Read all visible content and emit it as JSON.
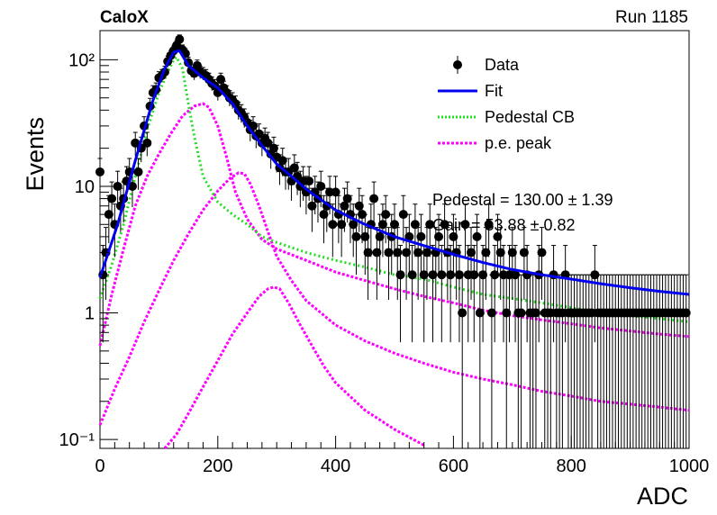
{
  "header": {
    "left_label": "CaloX",
    "right_label": "Run 1185"
  },
  "fit_results": {
    "pedestal": "Pedestal = 130.00 ± 1.39",
    "gain": "Gain = 53.88 ± 0.82"
  },
  "chart_data": {
    "type": "scatter",
    "title": "",
    "xlabel": "ADC",
    "ylabel": "Events",
    "xlim": [
      0,
      1000
    ],
    "ylim": [
      0.085,
      170
    ],
    "log_y": true,
    "grid": false,
    "legend_position": "top-right",
    "x_ticks": [
      0,
      200,
      400,
      600,
      800,
      1000
    ],
    "y_ticks": [
      {
        "value": 0.1,
        "label": "10⁻¹"
      },
      {
        "value": 1,
        "label": "1"
      },
      {
        "value": 10,
        "label": "10"
      },
      {
        "value": 100,
        "label": "10²"
      }
    ],
    "legend": [
      {
        "name": "Data",
        "style": "marker",
        "color": "#000000"
      },
      {
        "name": "Fit",
        "style": "solid",
        "color": "#0000ee"
      },
      {
        "name": "Pedestal CB",
        "style": "dotted",
        "color": "#22dd22"
      },
      {
        "name": "p.e. peak",
        "style": "dashed",
        "color": "#ff00ff"
      }
    ],
    "data_points": [
      [
        0,
        13
      ],
      [
        5,
        2
      ],
      [
        10,
        3
      ],
      [
        15,
        6
      ],
      [
        20,
        8
      ],
      [
        25,
        5
      ],
      [
        30,
        10
      ],
      [
        35,
        7
      ],
      [
        40,
        8
      ],
      [
        45,
        11
      ],
      [
        50,
        13
      ],
      [
        55,
        10
      ],
      [
        60,
        22
      ],
      [
        65,
        13
      ],
      [
        70,
        20
      ],
      [
        75,
        30
      ],
      [
        80,
        22
      ],
      [
        85,
        43
      ],
      [
        90,
        55
      ],
      [
        95,
        58
      ],
      [
        100,
        72
      ],
      [
        105,
        75
      ],
      [
        110,
        80
      ],
      [
        115,
        97
      ],
      [
        120,
        108
      ],
      [
        125,
        118
      ],
      [
        130,
        130
      ],
      [
        135,
        145
      ],
      [
        140,
        120
      ],
      [
        145,
        112
      ],
      [
        150,
        95
      ],
      [
        155,
        82
      ],
      [
        160,
        78
      ],
      [
        165,
        90
      ],
      [
        170,
        80
      ],
      [
        175,
        78
      ],
      [
        180,
        75
      ],
      [
        185,
        70
      ],
      [
        190,
        65
      ],
      [
        195,
        62
      ],
      [
        200,
        55
      ],
      [
        205,
        70
      ],
      [
        210,
        60
      ],
      [
        215,
        55
      ],
      [
        220,
        50
      ],
      [
        225,
        48
      ],
      [
        230,
        45
      ],
      [
        235,
        40
      ],
      [
        240,
        38
      ],
      [
        245,
        35
      ],
      [
        250,
        32
      ],
      [
        255,
        28
      ],
      [
        260,
        30
      ],
      [
        265,
        25
      ],
      [
        270,
        26
      ],
      [
        275,
        22
      ],
      [
        280,
        24
      ],
      [
        285,
        22
      ],
      [
        290,
        18
      ],
      [
        295,
        20
      ],
      [
        300,
        17
      ],
      [
        305,
        14
      ],
      [
        310,
        16
      ],
      [
        315,
        13
      ],
      [
        320,
        13
      ],
      [
        325,
        11
      ],
      [
        330,
        14
      ],
      [
        335,
        12
      ],
      [
        340,
        10
      ],
      [
        345,
        11
      ],
      [
        350,
        9
      ],
      [
        355,
        11
      ],
      [
        360,
        7
      ],
      [
        365,
        9
      ],
      [
        370,
        8
      ],
      [
        375,
        10
      ],
      [
        380,
        6
      ],
      [
        385,
        7
      ],
      [
        390,
        9
      ],
      [
        395,
        5
      ],
      [
        400,
        9
      ],
      [
        405,
        6
      ],
      [
        410,
        5
      ],
      [
        415,
        7
      ],
      [
        420,
        8
      ],
      [
        425,
        6
      ],
      [
        430,
        5
      ],
      [
        435,
        4
      ],
      [
        440,
        7
      ],
      [
        445,
        6
      ],
      [
        450,
        4
      ],
      [
        455,
        3
      ],
      [
        460,
        5
      ],
      [
        465,
        8
      ],
      [
        470,
        3
      ],
      [
        475,
        4
      ],
      [
        480,
        5
      ],
      [
        485,
        6
      ],
      [
        490,
        3
      ],
      [
        495,
        4
      ],
      [
        500,
        5
      ],
      [
        505,
        3
      ],
      [
        510,
        2
      ],
      [
        515,
        6
      ],
      [
        520,
        3
      ],
      [
        525,
        4
      ],
      [
        530,
        2
      ],
      [
        535,
        5
      ],
      [
        540,
        3
      ],
      [
        545,
        4
      ],
      [
        550,
        2
      ],
      [
        555,
        3
      ],
      [
        560,
        5
      ],
      [
        565,
        2
      ],
      [
        570,
        3
      ],
      [
        575,
        4
      ],
      [
        580,
        2
      ],
      [
        585,
        5
      ],
      [
        590,
        3
      ],
      [
        595,
        2
      ],
      [
        600,
        4
      ],
      [
        605,
        3
      ],
      [
        610,
        2
      ],
      [
        615,
        1
      ],
      [
        620,
        5
      ],
      [
        625,
        2
      ],
      [
        630,
        3
      ],
      [
        635,
        2
      ],
      [
        640,
        4
      ],
      [
        645,
        1
      ],
      [
        650,
        2
      ],
      [
        655,
        3
      ],
      [
        660,
        5
      ],
      [
        665,
        1
      ],
      [
        670,
        2
      ],
      [
        675,
        4
      ],
      [
        680,
        3
      ],
      [
        685,
        2
      ],
      [
        690,
        1
      ],
      [
        695,
        2
      ],
      [
        700,
        3
      ],
      [
        705,
        2
      ],
      [
        710,
        1
      ],
      [
        715,
        1
      ],
      [
        720,
        3
      ],
      [
        725,
        2
      ],
      [
        730,
        1
      ],
      [
        735,
        1
      ],
      [
        740,
        1
      ],
      [
        745,
        2
      ],
      [
        750,
        3
      ],
      [
        755,
        1
      ],
      [
        760,
        1
      ],
      [
        765,
        1
      ],
      [
        770,
        2
      ],
      [
        775,
        1
      ],
      [
        780,
        1
      ],
      [
        785,
        1
      ],
      [
        790,
        2
      ],
      [
        795,
        1
      ],
      [
        800,
        1
      ],
      [
        805,
        1
      ],
      [
        810,
        1
      ],
      [
        815,
        1
      ],
      [
        820,
        1
      ],
      [
        825,
        1
      ],
      [
        830,
        1
      ],
      [
        835,
        1
      ],
      [
        840,
        2
      ],
      [
        845,
        1
      ],
      [
        850,
        1
      ],
      [
        855,
        1
      ],
      [
        860,
        1
      ],
      [
        865,
        1
      ],
      [
        870,
        1
      ],
      [
        875,
        1
      ],
      [
        880,
        1
      ],
      [
        885,
        1
      ],
      [
        890,
        1
      ],
      [
        895,
        1
      ],
      [
        900,
        1
      ],
      [
        905,
        1
      ],
      [
        910,
        1
      ],
      [
        915,
        1
      ],
      [
        920,
        1
      ],
      [
        925,
        1
      ],
      [
        930,
        1
      ],
      [
        935,
        1
      ],
      [
        940,
        1
      ],
      [
        945,
        1
      ],
      [
        950,
        1
      ],
      [
        955,
        1
      ],
      [
        960,
        1
      ],
      [
        965,
        1
      ],
      [
        970,
        1
      ],
      [
        975,
        1
      ],
      [
        980,
        1
      ],
      [
        985,
        1
      ],
      [
        990,
        1
      ],
      [
        995,
        1
      ]
    ],
    "fit_curve": [
      [
        0,
        1.9
      ],
      [
        30,
        5
      ],
      [
        60,
        16
      ],
      [
        90,
        48
      ],
      [
        110,
        85
      ],
      [
        125,
        115
      ],
      [
        135,
        118
      ],
      [
        150,
        90
      ],
      [
        175,
        72
      ],
      [
        200,
        60
      ],
      [
        225,
        45
      ],
      [
        250,
        30
      ],
      [
        275,
        21
      ],
      [
        300,
        15
      ],
      [
        325,
        12
      ],
      [
        350,
        9.5
      ],
      [
        400,
        6.5
      ],
      [
        450,
        5
      ],
      [
        500,
        4
      ],
      [
        550,
        3.4
      ],
      [
        600,
        2.9
      ],
      [
        650,
        2.5
      ],
      [
        700,
        2.2
      ],
      [
        750,
        2
      ],
      [
        800,
        1.85
      ],
      [
        850,
        1.7
      ],
      [
        900,
        1.58
      ],
      [
        950,
        1.48
      ],
      [
        1000,
        1.4
      ]
    ],
    "pedestal_curve": [
      [
        0,
        1.3
      ],
      [
        20,
        2.4
      ],
      [
        40,
        5
      ],
      [
        60,
        12
      ],
      [
        80,
        28
      ],
      [
        100,
        55
      ],
      [
        115,
        80
      ],
      [
        125,
        100
      ],
      [
        130,
        105
      ],
      [
        140,
        85
      ],
      [
        150,
        45
      ],
      [
        160,
        25
      ],
      [
        175,
        12
      ],
      [
        200,
        7.5
      ],
      [
        225,
        6
      ],
      [
        250,
        5
      ],
      [
        275,
        4
      ],
      [
        300,
        3.6
      ],
      [
        350,
        3
      ],
      [
        400,
        2.6
      ],
      [
        450,
        2.3
      ],
      [
        500,
        2
      ],
      [
        550,
        1.85
      ],
      [
        600,
        1.6
      ],
      [
        650,
        1.4
      ],
      [
        700,
        1.3
      ],
      [
        750,
        1.2
      ],
      [
        800,
        1.1
      ],
      [
        850,
        1
      ],
      [
        900,
        0.95
      ],
      [
        950,
        0.9
      ],
      [
        1000,
        0.85
      ]
    ],
    "pe_peaks": [
      [
        [
          0,
          0.55
        ],
        [
          20,
          1.4
        ],
        [
          40,
          3.2
        ],
        [
          60,
          7
        ],
        [
          80,
          12
        ],
        [
          100,
          18
        ],
        [
          120,
          26
        ],
        [
          140,
          36
        ],
        [
          160,
          43
        ],
        [
          175,
          45
        ],
        [
          185,
          42
        ],
        [
          200,
          30
        ],
        [
          215,
          17
        ],
        [
          230,
          9
        ],
        [
          250,
          5.5
        ],
        [
          275,
          3.8
        ],
        [
          300,
          3.2
        ],
        [
          350,
          2.6
        ],
        [
          400,
          2.1
        ],
        [
          450,
          1.8
        ],
        [
          500,
          1.55
        ],
        [
          550,
          1.35
        ],
        [
          600,
          1.2
        ],
        [
          650,
          1.05
        ],
        [
          700,
          0.95
        ],
        [
          750,
          0.88
        ],
        [
          800,
          0.82
        ],
        [
          850,
          0.76
        ],
        [
          900,
          0.72
        ],
        [
          950,
          0.68
        ],
        [
          1000,
          0.65
        ]
      ],
      [
        [
          0,
          0.13
        ],
        [
          25,
          0.25
        ],
        [
          50,
          0.45
        ],
        [
          75,
          0.85
        ],
        [
          100,
          1.5
        ],
        [
          125,
          2.6
        ],
        [
          150,
          4.2
        ],
        [
          175,
          6.5
        ],
        [
          200,
          9.2
        ],
        [
          220,
          11.5
        ],
        [
          235,
          12.8
        ],
        [
          245,
          12.6
        ],
        [
          255,
          10.5
        ],
        [
          270,
          7
        ],
        [
          285,
          4.4
        ],
        [
          300,
          2.8
        ],
        [
          325,
          1.8
        ],
        [
          350,
          1.25
        ],
        [
          400,
          0.8
        ],
        [
          450,
          0.6
        ],
        [
          500,
          0.48
        ],
        [
          550,
          0.4
        ],
        [
          600,
          0.34
        ],
        [
          650,
          0.3
        ],
        [
          700,
          0.27
        ],
        [
          750,
          0.24
        ],
        [
          800,
          0.22
        ],
        [
          850,
          0.2
        ],
        [
          900,
          0.19
        ],
        [
          950,
          0.18
        ],
        [
          1000,
          0.17
        ]
      ],
      [
        [
          110,
          0.085
        ],
        [
          130,
          0.11
        ],
        [
          150,
          0.16
        ],
        [
          175,
          0.26
        ],
        [
          200,
          0.42
        ],
        [
          225,
          0.68
        ],
        [
          250,
          1.0
        ],
        [
          270,
          1.35
        ],
        [
          285,
          1.55
        ],
        [
          295,
          1.6
        ],
        [
          305,
          1.55
        ],
        [
          320,
          1.2
        ],
        [
          340,
          0.8
        ],
        [
          360,
          0.55
        ],
        [
          380,
          0.38
        ],
        [
          400,
          0.28
        ],
        [
          450,
          0.17
        ],
        [
          500,
          0.12
        ],
        [
          550,
          0.09
        ]
      ]
    ]
  }
}
